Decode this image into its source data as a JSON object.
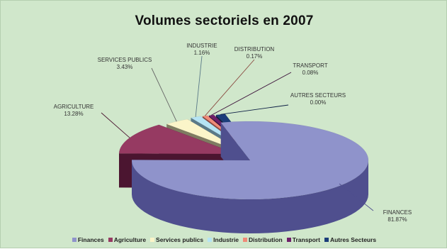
{
  "chart_data": {
    "type": "pie",
    "title": "Volumes sectoriels en 2007",
    "slices": [
      {
        "legend": "Finances",
        "label": "FINANCES",
        "pct": "81.87%",
        "value": 81.87,
        "color": "#8f93cb",
        "side": "#4f4f8e"
      },
      {
        "legend": "Agriculture",
        "label": "AGRICULTURE",
        "pct": "13.28%",
        "value": 13.28,
        "color": "#963a62",
        "side": "#4b1530"
      },
      {
        "legend": "Services publics",
        "label": "SERVICES PUBLICS",
        "pct": "3.43%",
        "value": 3.43,
        "color": "#fbf5c9",
        "side": "#7f7c62"
      },
      {
        "legend": "Industrie",
        "label": "INDUSTRIE",
        "pct": "1.16%",
        "value": 1.16,
        "color": "#b5e4f4",
        "side": "#5a7a88"
      },
      {
        "legend": "Distribution",
        "label": "DISTRIBUTION",
        "pct": "0.17%",
        "value": 0.17,
        "color": "#f08a78",
        "side": "#8a4a40"
      },
      {
        "legend": "Transport",
        "label": "TRANSPORT",
        "pct": "0.08%",
        "value": 0.08,
        "color": "#6e1f6a",
        "side": "#3a0f38"
      },
      {
        "legend": "Autres Secteurs",
        "label": "AUTRES SECTEURS",
        "pct": "0.00%",
        "value": 0.0,
        "color": "#1b3d7a",
        "side": "#0e2045"
      }
    ],
    "legend_position": "bottom",
    "view": "3d-exploded"
  }
}
